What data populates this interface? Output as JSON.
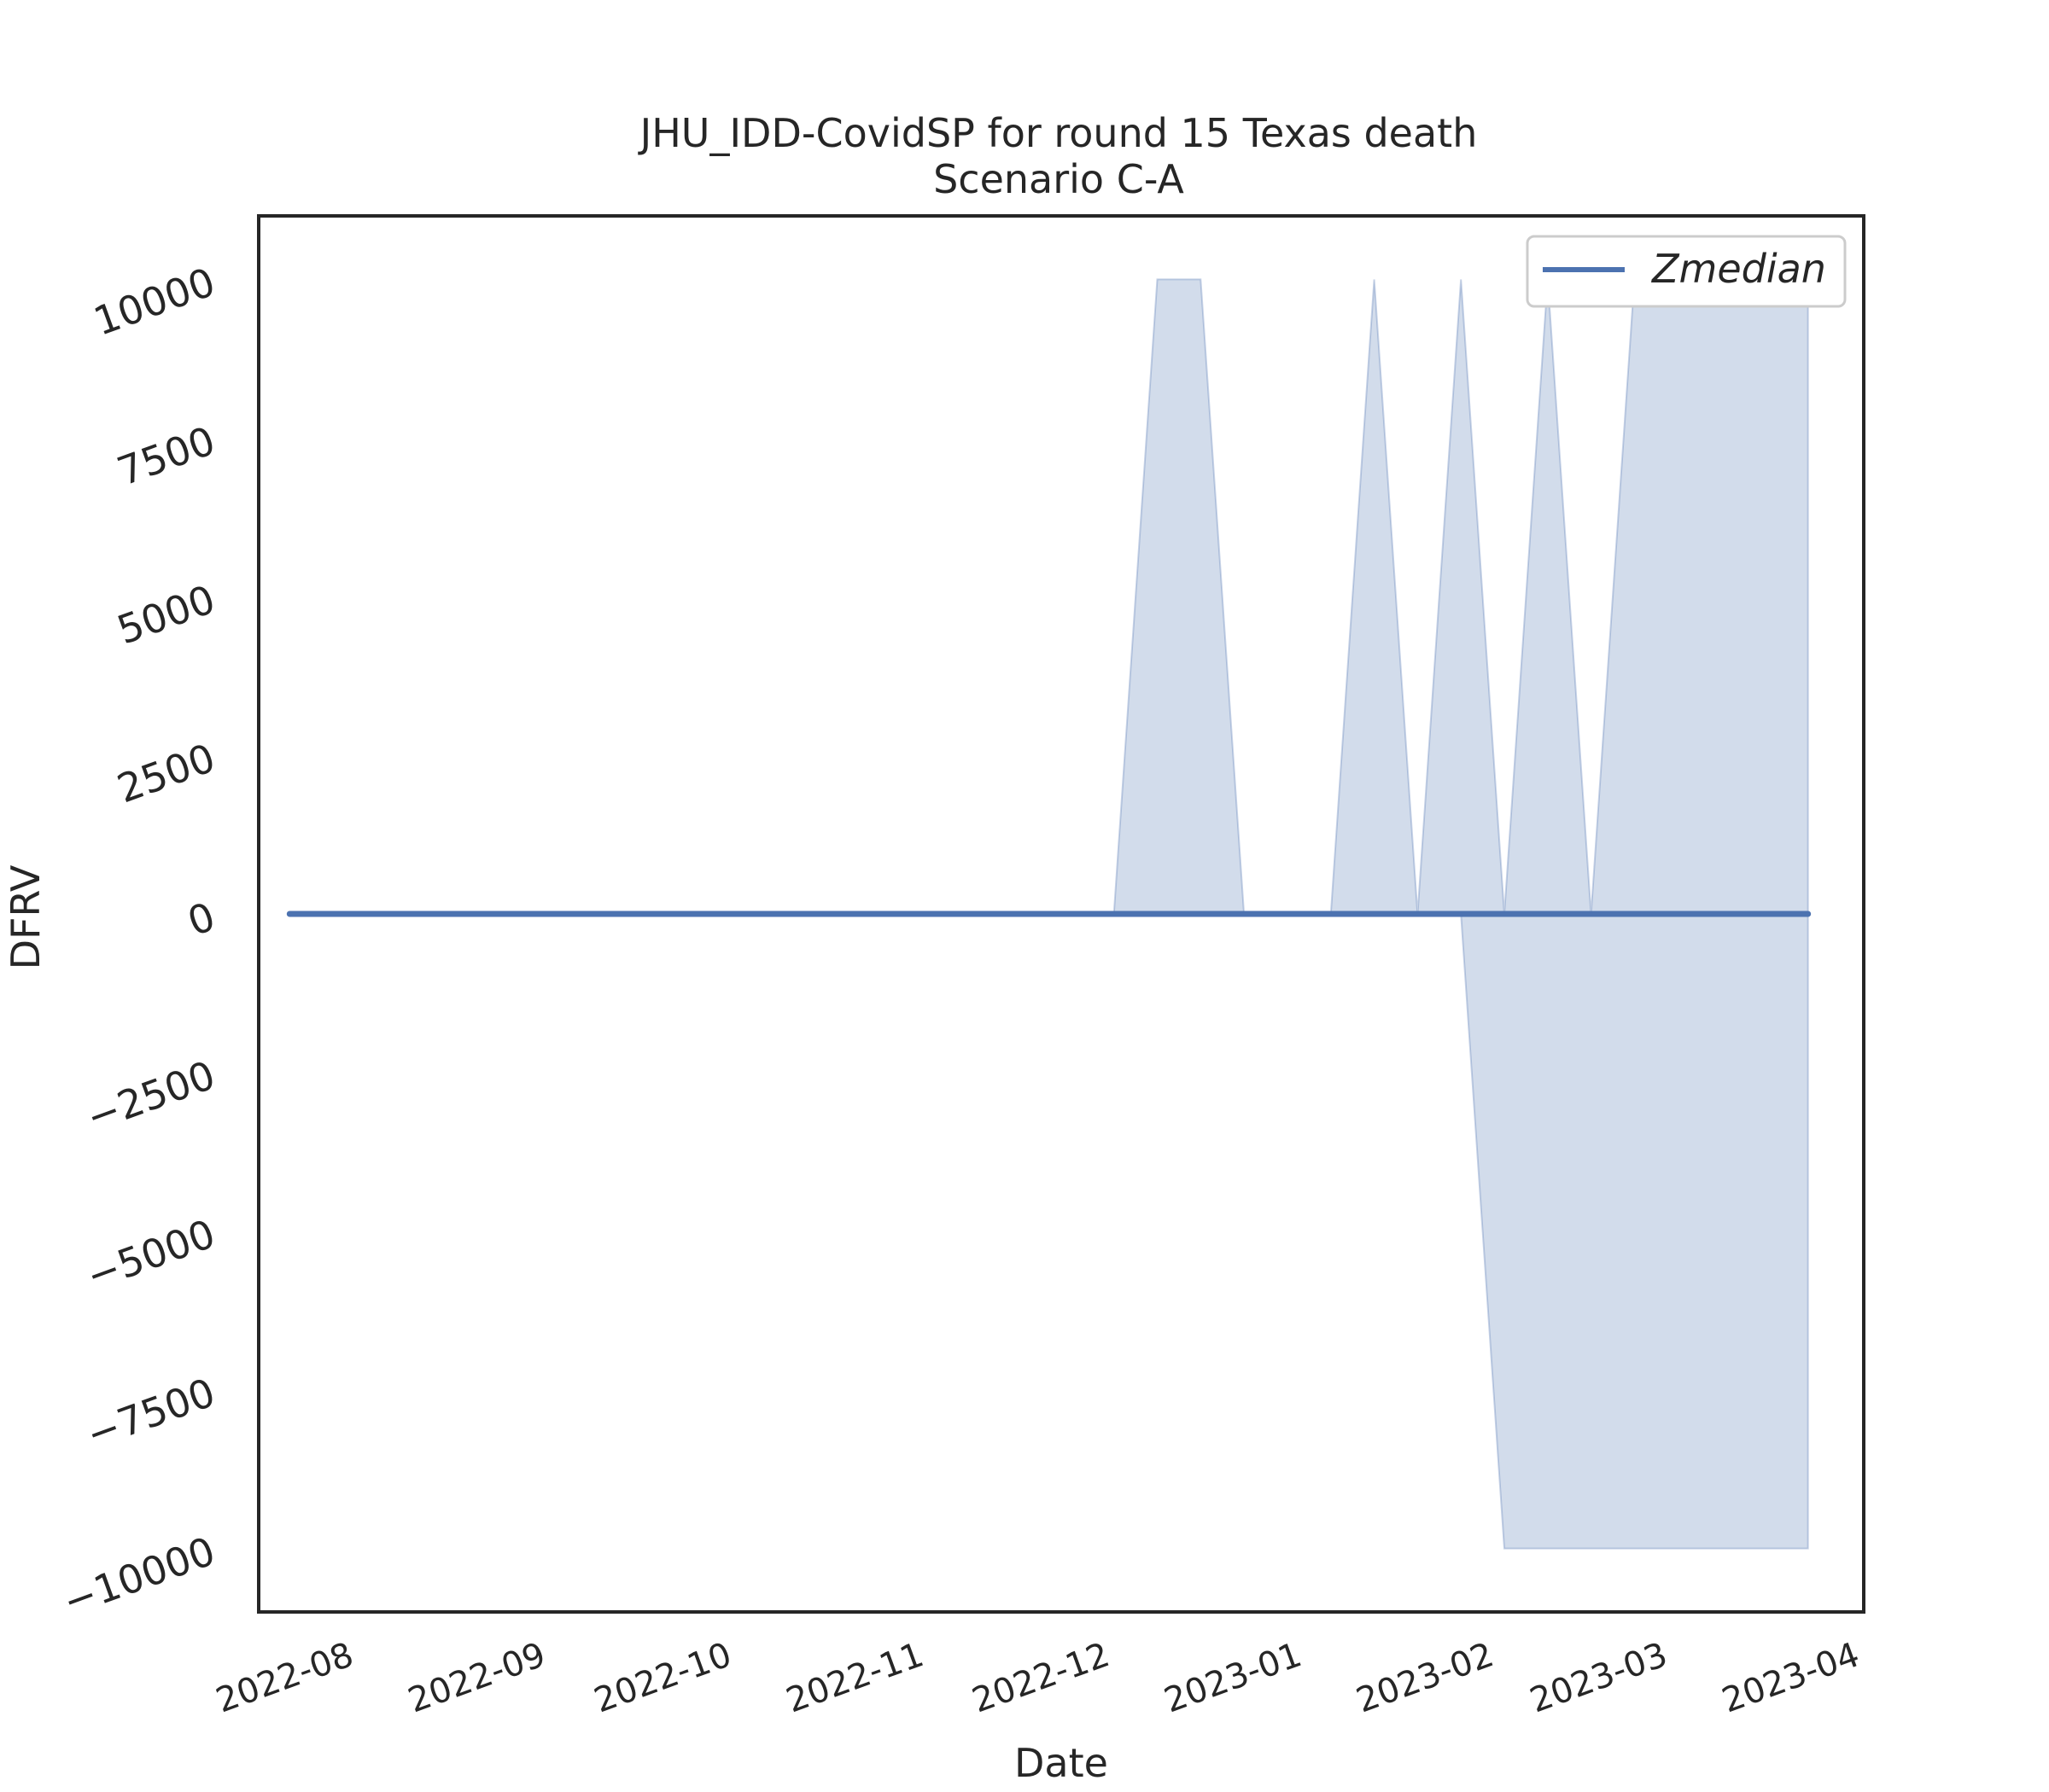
{
  "chart_data": {
    "type": "area",
    "title": "JHU_IDD-CovidSP for round 15 Texas death",
    "subtitle": "Scenario C-A",
    "xlabel": "Date",
    "ylabel": "DFRV",
    "xlim": [
      "2022-07-18",
      "2023-04-03"
    ],
    "ylim": [
      -11000,
      11000
    ],
    "x_ticks": [
      "2022-08",
      "2022-09",
      "2022-10",
      "2022-11",
      "2022-12",
      "2023-01",
      "2023-02",
      "2023-03",
      "2023-04"
    ],
    "y_ticks": [
      -10000,
      -7500,
      -5000,
      -2500,
      0,
      2500,
      5000,
      7500,
      10000
    ],
    "grid": false,
    "legend": {
      "placement": "top-right",
      "entries": [
        "Zmedian"
      ]
    },
    "colors": {
      "line": "#4c72b0",
      "band": "#4c72b0"
    },
    "x": [
      "2022-07-23",
      "2022-07-30",
      "2022-08-06",
      "2022-08-13",
      "2022-08-20",
      "2022-08-27",
      "2022-09-03",
      "2022-09-10",
      "2022-09-17",
      "2022-09-24",
      "2022-10-01",
      "2022-10-08",
      "2022-10-15",
      "2022-10-22",
      "2022-10-29",
      "2022-11-05",
      "2022-11-12",
      "2022-11-19",
      "2022-11-26",
      "2022-12-03",
      "2022-12-10",
      "2022-12-17",
      "2022-12-24",
      "2022-12-31",
      "2023-01-07",
      "2023-01-14",
      "2023-01-21",
      "2023-01-28",
      "2023-02-04",
      "2023-02-11",
      "2023-02-18",
      "2023-02-25",
      "2023-03-04",
      "2023-03-11",
      "2023-03-18",
      "2023-03-25"
    ],
    "series": [
      {
        "name": "Zmedian",
        "values": [
          0,
          0,
          0,
          0,
          0,
          0,
          0,
          0,
          0,
          0,
          0,
          0,
          0,
          0,
          0,
          0,
          0,
          0,
          0,
          0,
          0,
          0,
          0,
          0,
          0,
          0,
          0,
          0,
          0,
          0,
          0,
          0,
          0,
          0,
          0,
          0
        ]
      },
      {
        "band": "upper",
        "values": [
          0,
          0,
          0,
          0,
          0,
          0,
          0,
          0,
          0,
          0,
          0,
          0,
          0,
          0,
          0,
          0,
          0,
          0,
          0,
          0,
          10000,
          10000,
          0,
          0,
          0,
          10000,
          0,
          10000,
          0,
          10000,
          0,
          10000,
          10000,
          10000,
          10000,
          10000
        ]
      },
      {
        "band": "lower",
        "values": [
          0,
          0,
          0,
          0,
          0,
          0,
          0,
          0,
          0,
          0,
          0,
          0,
          0,
          0,
          0,
          0,
          0,
          0,
          0,
          0,
          0,
          0,
          0,
          0,
          0,
          0,
          0,
          0,
          -10000,
          -10000,
          -10000,
          -10000,
          -10000,
          -10000,
          -10000,
          -10000
        ]
      }
    ]
  }
}
